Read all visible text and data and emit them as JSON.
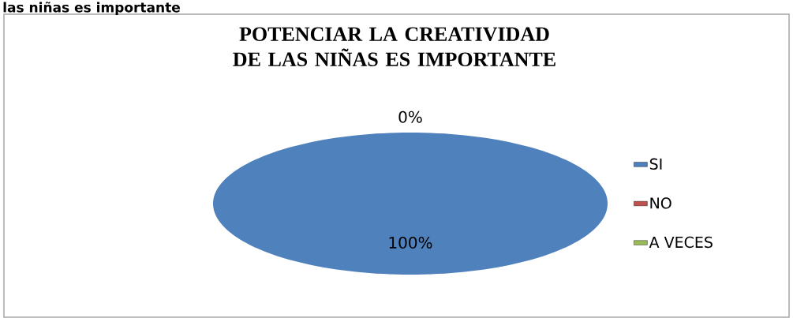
{
  "chart_data": {
    "type": "pie",
    "title": "POTENCIAR LA CREATIVIDAD DE LAS NIÑAS ES IMPORTANTE",
    "annotations": [
      "las niñas es importante"
    ],
    "categories": [
      "SI",
      "NO",
      "A  VECES"
    ],
    "values": [
      100,
      0,
      0
    ],
    "colors": [
      "#4f81bd",
      "#c0504d",
      "#9bbb59"
    ],
    "value_labels": [
      "100%",
      "0%",
      null
    ],
    "legend": "right"
  }
}
